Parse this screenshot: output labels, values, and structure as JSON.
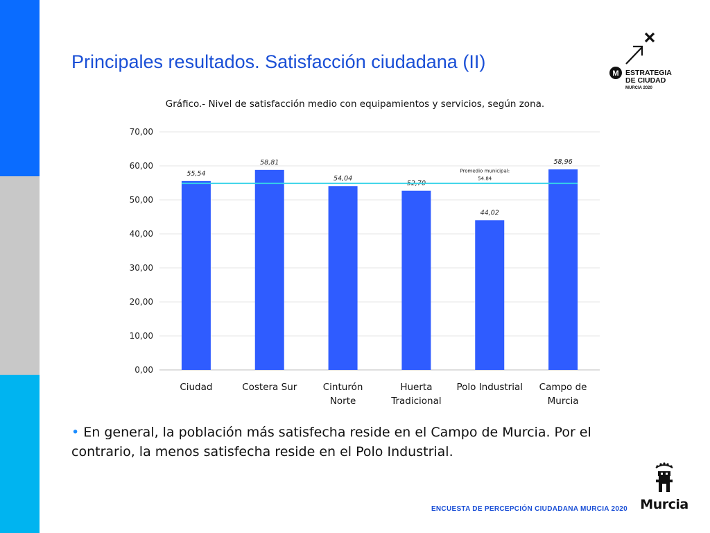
{
  "slide": {
    "title": "Principales resultados. Satisfacción ciudadana (II)",
    "bullet": "En general, la población más satisfecha reside en el Campo de Murcia. Por el contrario, la menos satisfecha reside en el Polo Industrial.",
    "footer": "ENCUESTA DE PERCEPCIÓN CIUDADANA MURCIA 2020"
  },
  "logo": {
    "line1": "ESTRATEGIA",
    "line2": "DE CIUDAD",
    "line3": "MURCIA 2020",
    "icon": "arrow-cross-icon"
  },
  "murcia_logo": {
    "word": "Murcia",
    "icon": "castle-crown-icon"
  },
  "colors": {
    "bar": "#2f5cff",
    "average_line": "#36d3e8",
    "title": "#1a4fd6",
    "sidebar_top": "#0a6cff",
    "sidebar_mid": "#c8c8c8",
    "sidebar_bottom": "#00b4f0"
  },
  "chart_data": {
    "type": "bar",
    "title": "Gráfico.- Nivel de satisfacción medio con equipamientos y servicios, según zona.",
    "categories": [
      [
        "Ciudad"
      ],
      [
        "Costera Sur"
      ],
      [
        "Cinturón",
        "Norte"
      ],
      [
        "Huerta",
        "Tradicional"
      ],
      [
        "Polo Industrial"
      ],
      [
        "Campo de",
        "Murcia"
      ]
    ],
    "values": [
      55.54,
      58.81,
      54.04,
      52.7,
      44.02,
      58.96
    ],
    "value_labels": [
      "55,54",
      "58,81",
      "54,04",
      "52,70",
      "44,02",
      "58,96"
    ],
    "ylim": [
      0,
      70
    ],
    "yticks": [
      "0,00",
      "10,00",
      "20,00",
      "30,00",
      "40,00",
      "50,00",
      "60,00",
      "70,00"
    ],
    "grid": true,
    "reference_line": {
      "value": 54.84,
      "label_line1": "Promedio municipal:",
      "label_line2": "54.84"
    }
  }
}
